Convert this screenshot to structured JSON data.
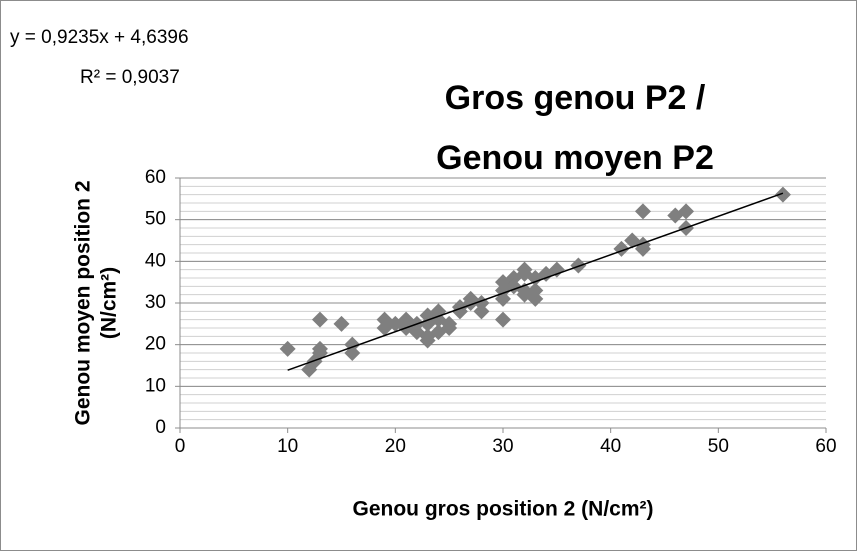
{
  "chart_data": {
    "type": "scatter",
    "title": [
      "Gros genou P2 /",
      "Genou moyen P2"
    ],
    "xlabel": "Genou gros position 2 (N/cm²)",
    "ylabel": [
      "Genou moyen position 2",
      "(N/cm²)"
    ],
    "x": [
      10,
      12,
      12.5,
      13,
      13,
      13,
      15,
      16,
      16,
      19,
      19,
      20,
      21,
      21,
      22,
      22,
      23,
      23,
      23,
      23,
      24,
      24,
      24,
      25,
      25,
      26,
      26,
      27,
      27,
      28,
      28,
      30,
      30,
      30,
      30,
      31,
      31,
      32,
      32,
      32,
      32,
      33,
      33,
      33,
      34,
      35,
      37,
      41,
      42,
      43,
      43,
      43,
      46,
      47,
      47,
      56
    ],
    "values": [
      19,
      14,
      16,
      26,
      19,
      18,
      25,
      20,
      18,
      26,
      24,
      25,
      26,
      24,
      25,
      23,
      27,
      25,
      22,
      21,
      28,
      26,
      23,
      25,
      24,
      28,
      29,
      31,
      30,
      30,
      28,
      35,
      33,
      31,
      26,
      36,
      34,
      38,
      37,
      33,
      32,
      36,
      33,
      31,
      37,
      38,
      39,
      43,
      45,
      52,
      44,
      43,
      51,
      52,
      48,
      56
    ],
    "color": "#7f7f7f",
    "xlim": [
      0,
      60
    ],
    "xticks": [
      0,
      10,
      20,
      30,
      40,
      50,
      60
    ],
    "ylim": [
      0,
      60
    ],
    "yticks": [
      0,
      10,
      20,
      30,
      40,
      50,
      60
    ],
    "grid": true,
    "minor_grid_step": 2,
    "trendline": {
      "slope": 0.9235,
      "intercept": 4.6396,
      "xrange": [
        10,
        56
      ],
      "color": "#000000",
      "equation": "y = 0,9235x + 4,6396",
      "r2": "R² = 0,9037"
    }
  }
}
